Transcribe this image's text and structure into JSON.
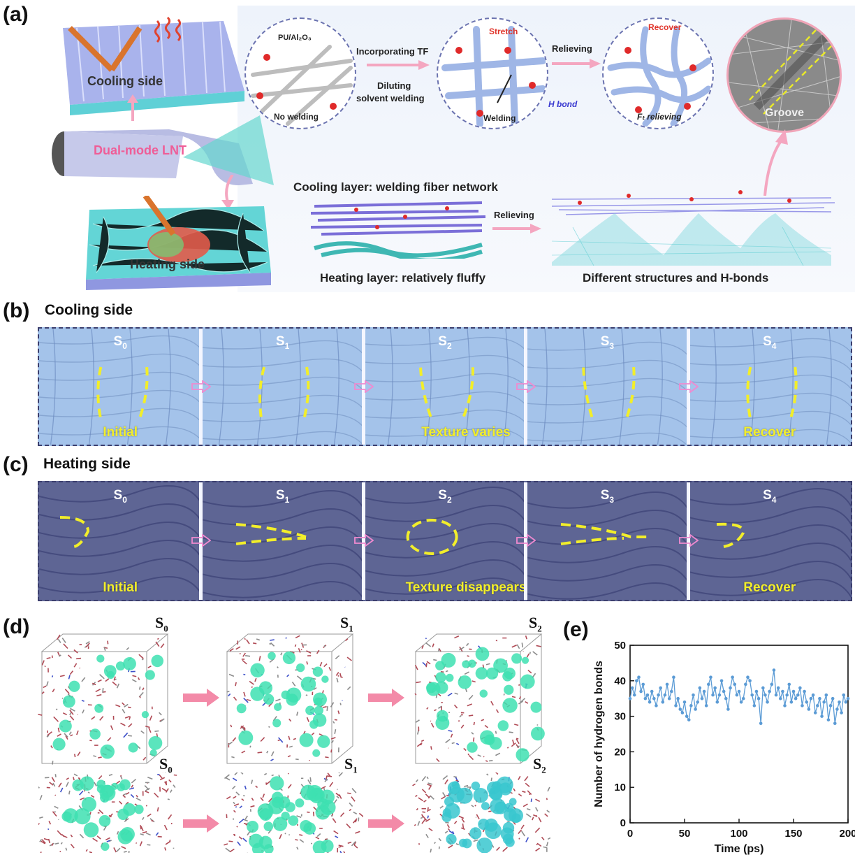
{
  "panels": {
    "a": "(a)",
    "b": "(b)",
    "c": "(c)",
    "d": "(d)",
    "e": "(e)"
  },
  "panel_a": {
    "cooling_side": "Cooling side",
    "heating_side": "Heating side",
    "dual_mode": "Dual-mode LNT",
    "circle1_title": "PU/Al₂O₃",
    "circle1_bottom": "No welding",
    "step1_top": "Incorporating TF",
    "step1_bottom_a": "Diluting",
    "step1_bottom_b": "solvent welding",
    "circle2_title": "Stretch",
    "circle2_bottom": "Welding",
    "hbond": "H bond",
    "step2": "Relieving",
    "circle3_title": "Recover",
    "circle3_bottom": "Fₜ relieving",
    "groove": "Groove",
    "cooling_layer": "Cooling layer: welding fiber network",
    "heating_layer": "Heating layer: relatively fluffy",
    "relieving": "Relieving",
    "diff_struct": "Different structures and H-bonds"
  },
  "panel_b": {
    "title": "Cooling side",
    "states": [
      "S",
      "S",
      "S",
      "S",
      "S"
    ],
    "subs": [
      "0",
      "1",
      "2",
      "3",
      "4"
    ],
    "captions": [
      "Initial",
      "",
      "Texture varies",
      "",
      "Recover"
    ]
  },
  "panel_c": {
    "title": "Heating side",
    "states": [
      "S",
      "S",
      "S",
      "S",
      "S"
    ],
    "subs": [
      "0",
      "1",
      "2",
      "3",
      "4"
    ],
    "captions": [
      "Initial",
      "",
      "Texture disappears",
      "",
      "Recover"
    ]
  },
  "panel_d": {
    "top_labels": [
      "S",
      "S",
      "S"
    ],
    "bottom_labels": [
      "S",
      "S",
      "S"
    ],
    "subs": [
      "0",
      "1",
      "2"
    ]
  },
  "chart_data": {
    "type": "scatter",
    "title": "",
    "xlabel": "Time (ps)",
    "ylabel": "Number of hydrogen bonds",
    "xlim": [
      0,
      200
    ],
    "ylim": [
      0,
      50
    ],
    "x_ticks": [
      "0",
      "50",
      "100",
      "150",
      "200"
    ],
    "y_ticks": [
      "0",
      "10",
      "20",
      "30",
      "40",
      "50"
    ],
    "series": [
      {
        "color": "#5b9bd5",
        "x": [
          0,
          2,
          4,
          6,
          8,
          10,
          12,
          14,
          16,
          18,
          20,
          22,
          24,
          26,
          28,
          30,
          32,
          34,
          36,
          38,
          40,
          42,
          44,
          46,
          48,
          50,
          52,
          54,
          56,
          58,
          60,
          62,
          64,
          66,
          68,
          70,
          72,
          74,
          76,
          78,
          80,
          82,
          84,
          86,
          88,
          90,
          92,
          94,
          96,
          98,
          100,
          102,
          104,
          106,
          108,
          110,
          112,
          114,
          116,
          118,
          120,
          122,
          124,
          126,
          128,
          130,
          132,
          134,
          136,
          138,
          140,
          142,
          144,
          146,
          148,
          150,
          152,
          154,
          156,
          158,
          160,
          162,
          164,
          166,
          168,
          170,
          172,
          174,
          176,
          178,
          180,
          182,
          184,
          186,
          188,
          190,
          192,
          194,
          196,
          198,
          200
        ],
        "y": [
          35,
          38,
          36,
          40,
          41,
          37,
          39,
          35,
          36,
          34,
          37,
          35,
          33,
          36,
          38,
          34,
          36,
          39,
          35,
          37,
          41,
          33,
          35,
          32,
          31,
          34,
          30,
          29,
          33,
          36,
          32,
          34,
          38,
          35,
          37,
          33,
          39,
          41,
          36,
          38,
          34,
          36,
          40,
          37,
          35,
          32,
          38,
          41,
          39,
          36,
          37,
          34,
          35,
          39,
          41,
          40,
          36,
          33,
          37,
          35,
          28,
          38,
          36,
          34,
          37,
          39,
          43,
          36,
          38,
          35,
          37,
          33,
          36,
          39,
          34,
          37,
          35,
          36,
          38,
          33,
          37,
          34,
          32,
          35,
          36,
          31,
          33,
          35,
          30,
          34,
          36,
          29,
          33,
          35,
          28,
          32,
          34,
          31,
          36,
          34,
          35
        ]
      }
    ]
  }
}
